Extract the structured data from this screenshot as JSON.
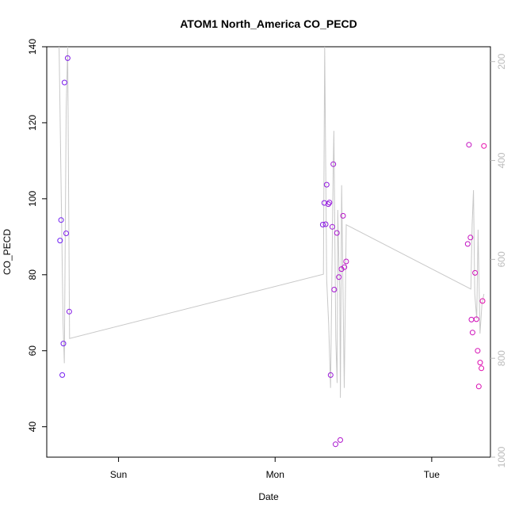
{
  "chart_data": {
    "type": "scatter",
    "title": "ATOM1 North_America CO_PECD",
    "xlabel": "Date",
    "ylabel": "CO_PECD",
    "x_ticks": [
      {
        "label": "Sun",
        "hours": 24
      },
      {
        "label": "Mon",
        "hours": 48
      },
      {
        "label": "Tue",
        "hours": 72
      }
    ],
    "xlim_hours": [
      13.0,
      81.0
    ],
    "ylim": [
      32,
      140
    ],
    "y_ticks": [
      40,
      60,
      80,
      100,
      120,
      140
    ],
    "right_axis": {
      "ticks": [
        200,
        400,
        600,
        800,
        1000
      ],
      "lim": [
        170,
        1000
      ],
      "reversed": true,
      "color": "#bbbbbb"
    },
    "grid": false,
    "points": [
      {
        "h": 15.04,
        "y": 89.0
      },
      {
        "h": 15.2,
        "y": 94.4
      },
      {
        "h": 15.38,
        "y": 53.6
      },
      {
        "h": 15.55,
        "y": 61.9
      },
      {
        "h": 15.72,
        "y": 130.6
      },
      {
        "h": 15.97,
        "y": 90.9
      },
      {
        "h": 16.21,
        "y": 137.0
      },
      {
        "h": 16.45,
        "y": 70.3
      },
      {
        "h": 55.3,
        "y": 93.2
      },
      {
        "h": 55.54,
        "y": 98.9
      },
      {
        "h": 55.74,
        "y": 93.3
      },
      {
        "h": 55.9,
        "y": 103.7
      },
      {
        "h": 56.15,
        "y": 98.6
      },
      {
        "h": 56.33,
        "y": 99.0
      },
      {
        "h": 56.51,
        "y": 53.6
      },
      {
        "h": 56.76,
        "y": 92.6
      },
      {
        "h": 56.92,
        "y": 109.1
      },
      {
        "h": 57.06,
        "y": 76.1
      },
      {
        "h": 57.26,
        "y": 35.4
      },
      {
        "h": 57.47,
        "y": 91.0
      },
      {
        "h": 57.77,
        "y": 79.4
      },
      {
        "h": 57.99,
        "y": 36.5
      },
      {
        "h": 58.17,
        "y": 81.5
      },
      {
        "h": 58.42,
        "y": 95.5
      },
      {
        "h": 58.62,
        "y": 82.0
      },
      {
        "h": 58.89,
        "y": 83.5
      },
      {
        "h": 77.52,
        "y": 88.1
      },
      {
        "h": 77.71,
        "y": 114.2
      },
      {
        "h": 77.94,
        "y": 89.8
      },
      {
        "h": 78.09,
        "y": 68.2
      },
      {
        "h": 78.25,
        "y": 64.8
      },
      {
        "h": 78.64,
        "y": 80.5
      },
      {
        "h": 78.85,
        "y": 68.3
      },
      {
        "h": 79.05,
        "y": 60.0
      },
      {
        "h": 79.22,
        "y": 50.6
      },
      {
        "h": 79.42,
        "y": 56.9
      },
      {
        "h": 79.61,
        "y": 55.4
      },
      {
        "h": 79.79,
        "y": 73.1
      },
      {
        "h": 80.0,
        "y": 113.9
      }
    ],
    "line": {
      "color": "#c8c8c8",
      "axis": "right",
      "points": [
        [
          14.9,
          170
        ],
        [
          15.5,
          730
        ],
        [
          15.7,
          810
        ],
        [
          15.98,
          300
        ],
        [
          16.2,
          170
        ],
        [
          16.5,
          760
        ],
        [
          55.4,
          630
        ],
        [
          55.6,
          170
        ],
        [
          55.9,
          640
        ],
        [
          56.2,
          730
        ],
        [
          56.5,
          860
        ],
        [
          56.9,
          420
        ],
        [
          57.0,
          340
        ],
        [
          57.3,
          760
        ],
        [
          57.5,
          850
        ],
        [
          57.6,
          500
        ],
        [
          57.8,
          620
        ],
        [
          57.9,
          660
        ],
        [
          58.0,
          880
        ],
        [
          58.2,
          450
        ],
        [
          58.6,
          860
        ],
        [
          58.9,
          530
        ],
        [
          78.0,
          660
        ],
        [
          78.2,
          530
        ],
        [
          78.4,
          460
        ],
        [
          78.6,
          670
        ],
        [
          78.9,
          720
        ],
        [
          79.1,
          540
        ],
        [
          79.4,
          750
        ],
        [
          79.7,
          690
        ],
        [
          80.0,
          670
        ]
      ]
    }
  }
}
